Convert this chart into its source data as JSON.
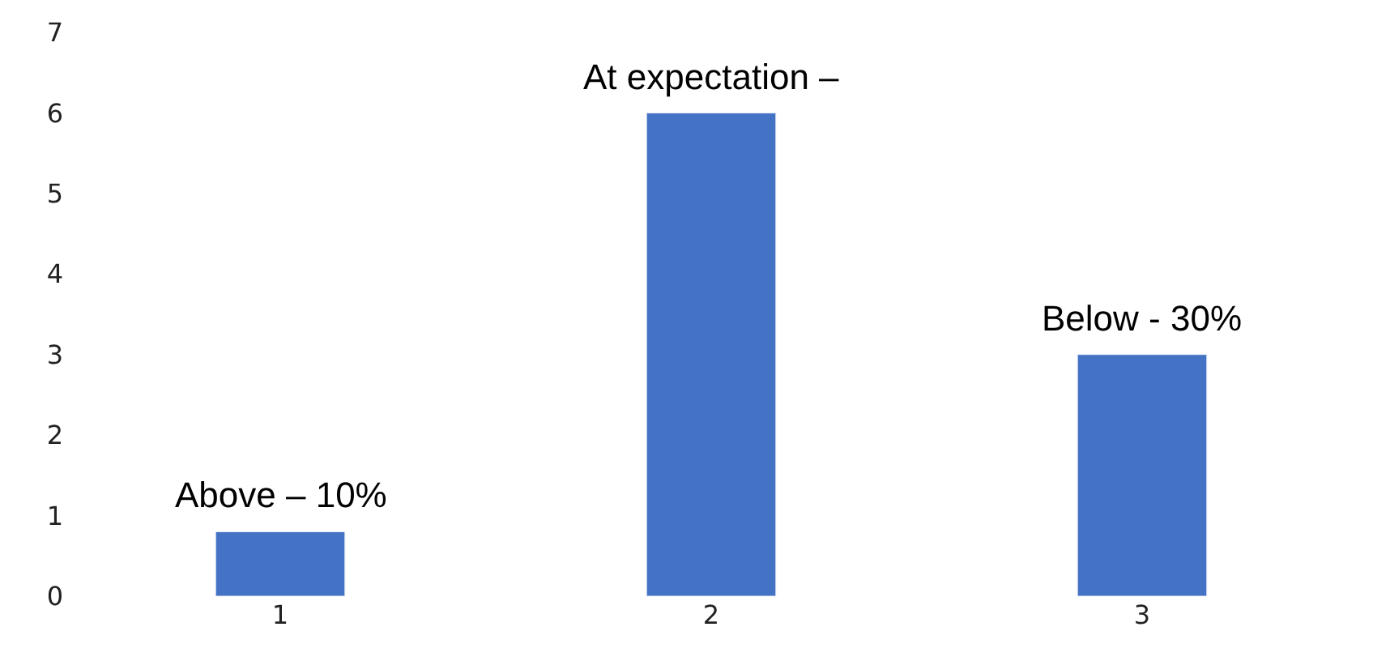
{
  "chart_data": {
    "type": "bar",
    "categories": [
      "1",
      "2",
      "3"
    ],
    "values": [
      0.8,
      6,
      3
    ],
    "color": "#4472c4",
    "ylim": [
      0,
      7
    ],
    "yticks": [
      0,
      1,
      2,
      3,
      4,
      5,
      6,
      7
    ],
    "annotations": [
      {
        "text": "Above – 10%",
        "x": "1",
        "y": 0.8
      },
      {
        "text": "At expectation –",
        "x": "2",
        "y": 6
      },
      {
        "text": "Below - 30%",
        "x": "3",
        "y": 3
      }
    ]
  }
}
